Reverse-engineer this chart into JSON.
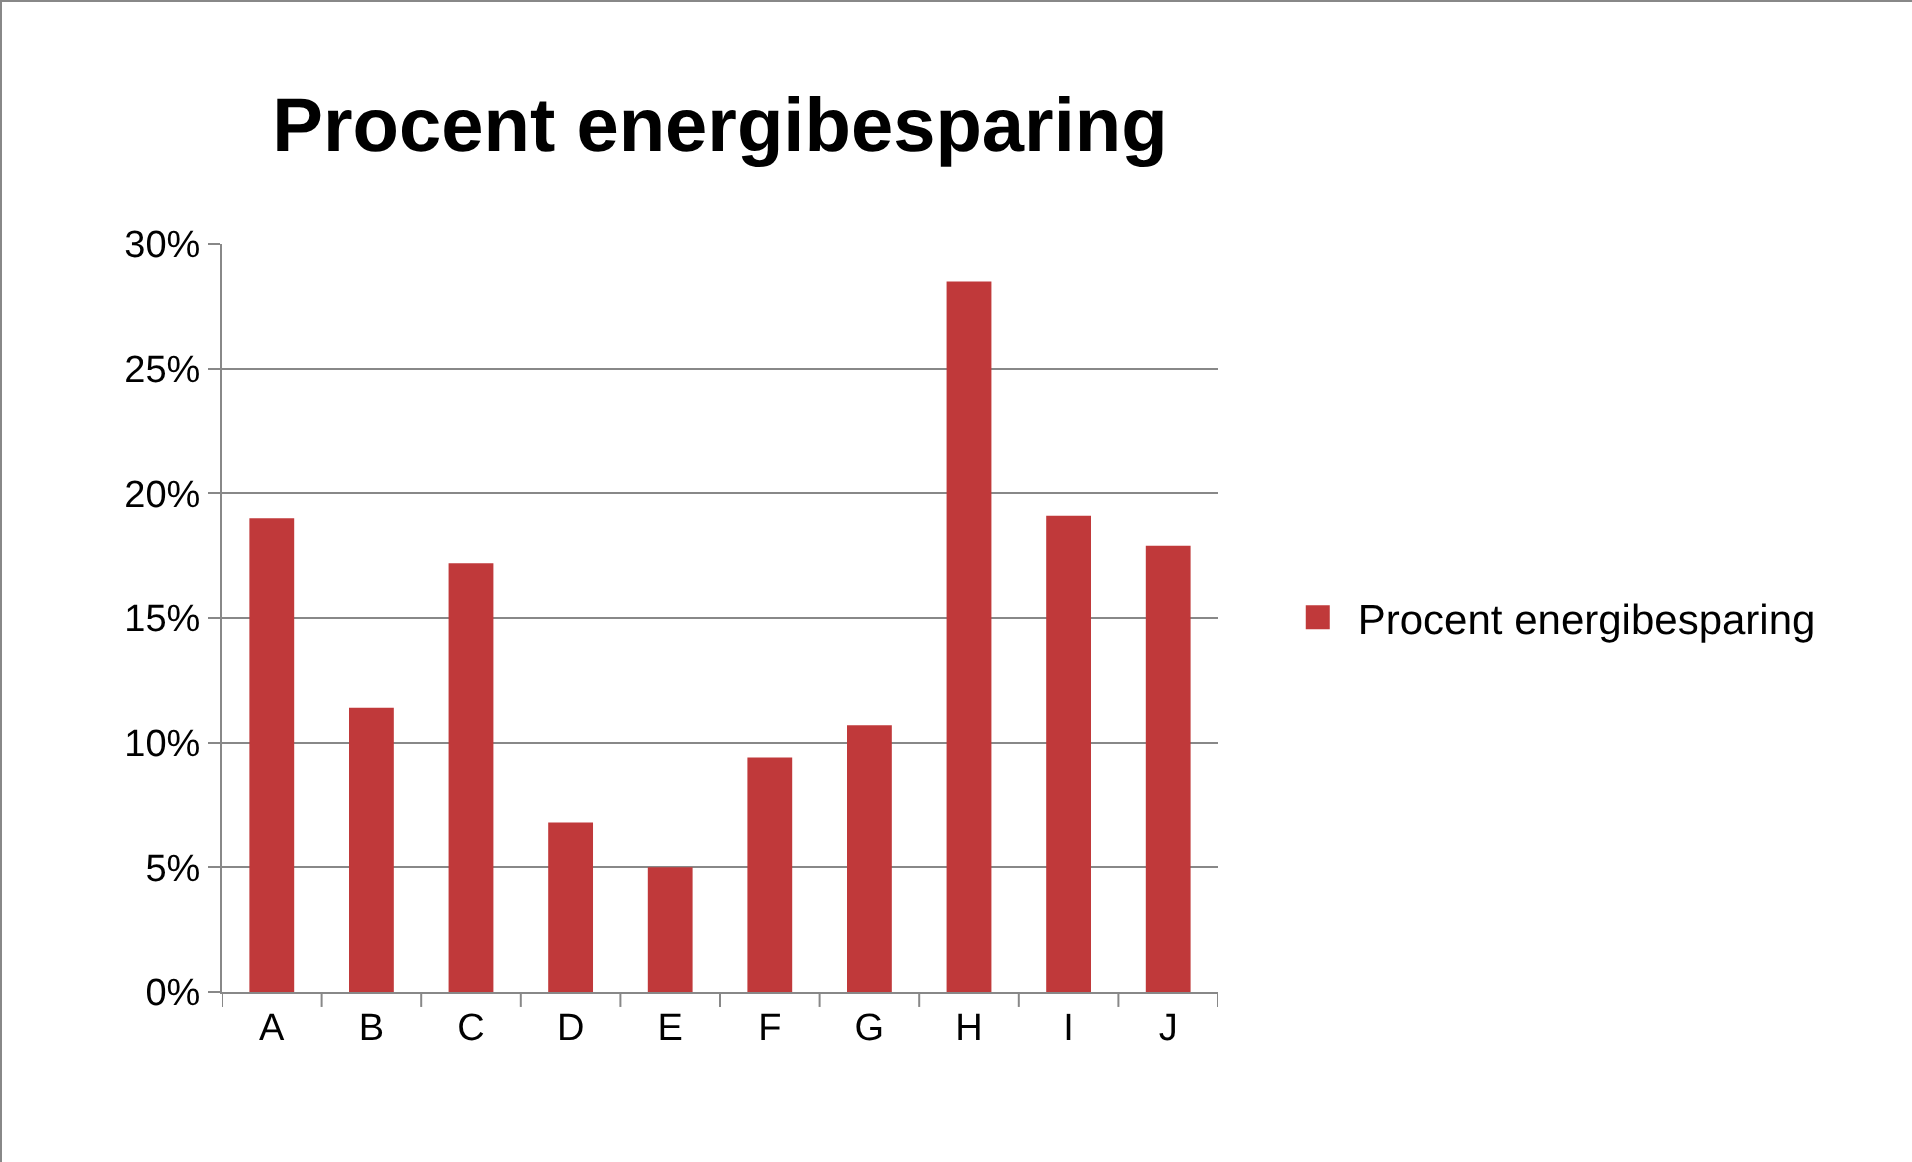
{
  "chart_data": {
    "type": "bar",
    "title": "Procent energibesparing",
    "categories": [
      "A",
      "B",
      "C",
      "D",
      "E",
      "F",
      "G",
      "H",
      "I",
      "J"
    ],
    "series": [
      {
        "name": "Procent energibesparing",
        "color": "#c0393a",
        "values": [
          19.0,
          11.4,
          17.2,
          6.8,
          5.0,
          9.4,
          10.7,
          28.5,
          19.1,
          17.9
        ]
      }
    ],
    "ylim": [
      0,
      30
    ],
    "yticks": [
      {
        "value": 0,
        "label": "0%"
      },
      {
        "value": 5,
        "label": "5%"
      },
      {
        "value": 10,
        "label": "10%"
      },
      {
        "value": 15,
        "label": "15%"
      },
      {
        "value": 20,
        "label": "20%"
      },
      {
        "value": 25,
        "label": "25%"
      },
      {
        "value": 30,
        "label": "30%"
      }
    ],
    "grid": "y",
    "legend": "right"
  }
}
